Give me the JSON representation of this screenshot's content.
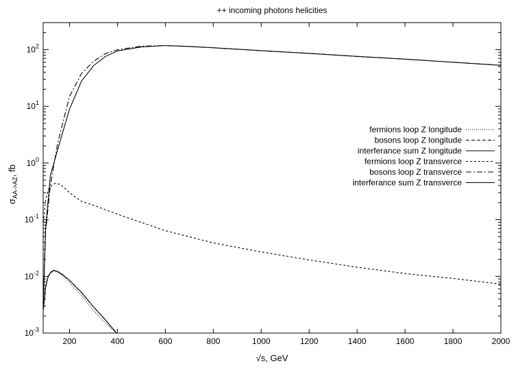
{
  "chart_data": {
    "type": "line",
    "title": "++ incoming photons helicities",
    "xlabel": "√s, GeV",
    "ylabel": "σAA->AZ, fb",
    "ylabel_main": "σ",
    "ylabel_sub": "AA->AZ",
    "ylabel_rest": ", fb",
    "xlim": [
      90,
      2000
    ],
    "ylim": [
      0.001,
      300
    ],
    "yscale": "log",
    "grid": false,
    "legend_position": "right",
    "x_ticks": [
      200,
      400,
      600,
      800,
      1000,
      1200,
      1400,
      1600,
      1800,
      2000
    ],
    "y_ticks": [
      {
        "value": 0.001,
        "base": "10",
        "exp": "-3"
      },
      {
        "value": 0.01,
        "base": "10",
        "exp": "-2"
      },
      {
        "value": 0.1,
        "base": "10",
        "exp": "-1"
      },
      {
        "value": 1,
        "base": "10",
        "exp": "0"
      },
      {
        "value": 10,
        "base": "10",
        "exp": "1"
      },
      {
        "value": 100,
        "base": "10",
        "exp": "2"
      }
    ],
    "series": [
      {
        "name": "fermions loop Z longitude",
        "dash": "1,2",
        "x": [
          91,
          100,
          110,
          120,
          135,
          150,
          170,
          200,
          250,
          300,
          350,
          400
        ],
        "y": [
          0.0026,
          0.0062,
          0.0095,
          0.0114,
          0.0124,
          0.0118,
          0.0103,
          0.0078,
          0.0046,
          0.0025,
          0.0015,
          0.00095
        ]
      },
      {
        "name": "bosons loop Z longitude",
        "dash": "5,3",
        "x": [
          91,
          100,
          110,
          120,
          135,
          150,
          170,
          200,
          250,
          300,
          350,
          400
        ],
        "y": [
          0.0026,
          0.0065,
          0.0098,
          0.0117,
          0.0128,
          0.0122,
          0.0108,
          0.0085,
          0.0052,
          0.0029,
          0.0017,
          0.00096
        ]
      },
      {
        "name": "interferance sum Z longitude",
        "dash": "",
        "x": [
          91,
          100,
          110,
          120,
          135,
          150,
          170,
          200,
          250,
          300,
          350,
          400
        ],
        "y": [
          0.0026,
          0.0065,
          0.0098,
          0.0117,
          0.0128,
          0.0122,
          0.0108,
          0.0085,
          0.0052,
          0.0029,
          0.0017,
          0.00096
        ]
      },
      {
        "name": "fermions loop Z transverce",
        "dash": "3,3",
        "x": [
          91,
          100,
          110,
          125,
          140,
          160,
          180,
          200,
          230,
          250,
          300,
          400,
          600,
          800,
          1000,
          1200,
          1400,
          1600,
          1800,
          2000
        ],
        "y": [
          0.09,
          0.22,
          0.33,
          0.4,
          0.44,
          0.42,
          0.36,
          0.3,
          0.24,
          0.21,
          0.18,
          0.125,
          0.064,
          0.039,
          0.027,
          0.0195,
          0.0145,
          0.0112,
          0.0092,
          0.0073
        ]
      },
      {
        "name": "bosons loop Z transverce",
        "dash": "8,3,2,3",
        "x": [
          91,
          100,
          120,
          150,
          200,
          250,
          300,
          350,
          400,
          500,
          600,
          700,
          800,
          1000,
          1200,
          1400,
          1600,
          1800,
          2000
        ],
        "y": [
          0.0035,
          0.06,
          0.4,
          2.2,
          15,
          38,
          62,
          85,
          100,
          115,
          118,
          114,
          108,
          96,
          86,
          76,
          68,
          60,
          53
        ]
      },
      {
        "name": "interferance sum Z transverce",
        "dash": "",
        "x": [
          91,
          100,
          120,
          150,
          200,
          250,
          300,
          350,
          400,
          500,
          600,
          700,
          800,
          1000,
          1200,
          1400,
          1600,
          1800,
          2000
        ],
        "y": [
          0.0035,
          0.07,
          0.6,
          1.7,
          9,
          28,
          52,
          76,
          95,
          112,
          118,
          114,
          108,
          96,
          86,
          76,
          68,
          60,
          53
        ]
      }
    ]
  }
}
